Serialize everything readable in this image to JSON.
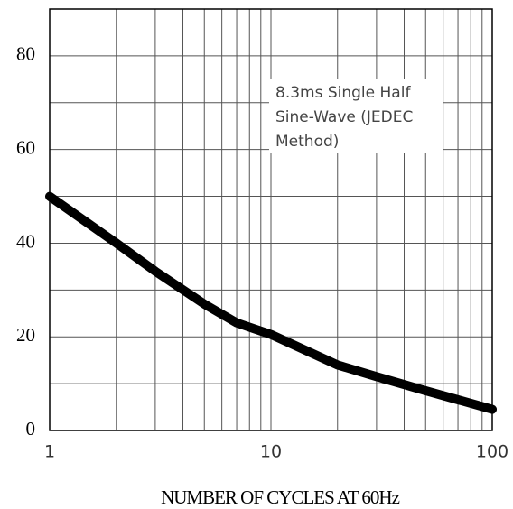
{
  "chart_data": {
    "type": "line",
    "x_label": "NUMBER OF CYCLES AT 60Hz",
    "annotation": [
      "8.3ms Single Half",
      "Sine-Wave (JEDEC",
      "Method)"
    ],
    "x": [
      1,
      2,
      3,
      5,
      7,
      10,
      20,
      30,
      50,
      100
    ],
    "series": [
      {
        "color": "#000000",
        "values": [
          50,
          40,
          34,
          27,
          23,
          20.5,
          14,
          11.5,
          8.5,
          4.5
        ]
      }
    ],
    "xscale": "log",
    "xlim": [
      1,
      100
    ],
    "xticks": [
      1,
      10,
      100
    ],
    "x_minor_ticks": [
      2,
      3,
      4,
      5,
      6,
      7,
      8,
      9,
      20,
      30,
      40,
      50,
      60,
      70,
      80,
      90
    ],
    "ylim": [
      0,
      90
    ],
    "yticks": [
      0,
      20,
      40,
      60,
      80
    ],
    "y_minor_ticks": [
      10,
      30,
      50,
      70
    ],
    "grid": true
  }
}
